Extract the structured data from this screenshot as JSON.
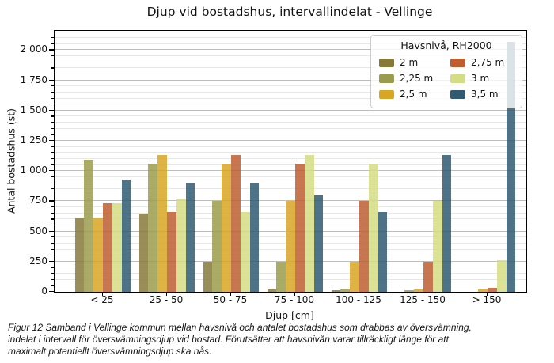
{
  "chart_data": {
    "type": "bar",
    "title": "Djup vid bostadshus, intervallindelat - Vellinge",
    "xlabel": "Djup [cm]",
    "ylabel": "Antal bostadshus (st)",
    "categories": [
      "< 25",
      "25 - 50",
      "50 - 75",
      "75 - 100",
      "100 - 125",
      "125 - 150",
      "> 150"
    ],
    "series": [
      {
        "name": "2 m",
        "color": "#877a39",
        "values": [
          610,
          650,
          250,
          20,
          15,
          0,
          0
        ]
      },
      {
        "name": "2,25 m",
        "color": "#9a9c4b",
        "values": [
          1090,
          1060,
          755,
          250,
          20,
          10,
          0
        ]
      },
      {
        "name": "2,5 m",
        "color": "#d8a622",
        "values": [
          610,
          1130,
          1060,
          750,
          250,
          20,
          20
        ]
      },
      {
        "name": "2,75 m",
        "color": "#bd5e31",
        "values": [
          730,
          660,
          1130,
          1060,
          755,
          250,
          30
        ]
      },
      {
        "name": "3 m",
        "color": "#d5dd84",
        "values": [
          730,
          775,
          660,
          1130,
          1060,
          755,
          265
        ]
      },
      {
        "name": "3,5 m",
        "color": "#2f5a72",
        "values": [
          930,
          895,
          895,
          800,
          660,
          1130,
          2070
        ]
      }
    ],
    "ylim": [
      0,
      2160
    ],
    "yticks": [
      {
        "value": 0,
        "label": "0"
      },
      {
        "value": 250,
        "label": "250"
      },
      {
        "value": 500,
        "label": "500"
      },
      {
        "value": 750,
        "label": "750"
      },
      {
        "value": 1000,
        "label": "1 000"
      },
      {
        "value": 1250,
        "label": "1 250"
      },
      {
        "value": 1500,
        "label": "1 500"
      },
      {
        "value": 1750,
        "label": "1 750"
      },
      {
        "value": 2000,
        "label": "2 000"
      }
    ],
    "minor_grid_step": 50,
    "major_grid_step": 250,
    "grid": true,
    "legend_position": "upper right",
    "bar_alpha": 0.85
  },
  "legend": {
    "title": "Havsnivå, RH2000"
  },
  "caption": {
    "lines": [
      "Figur 12 Samband i Vellinge kommun mellan havsnivå och antalet bostadshus som drabbas av översvämning,",
      "indelat i intervall för översvämningsdjup vid bostad. Förutsätter att havsnivån varar tillräckligt länge för att",
      "maximalt potentiellt översvämningsdjup ska nås."
    ]
  }
}
